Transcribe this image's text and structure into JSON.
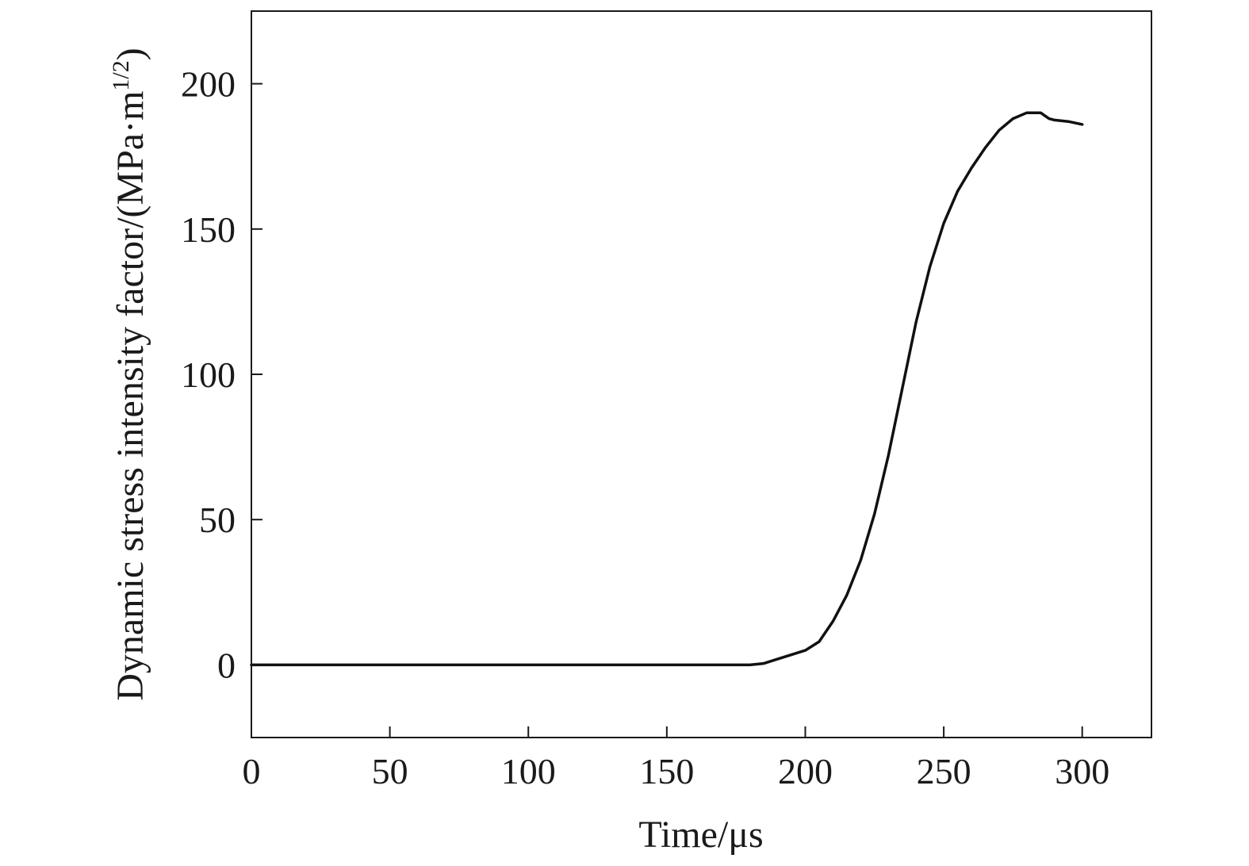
{
  "chart_data": {
    "type": "line",
    "title": "",
    "xlabel": "Time/μs",
    "ylabel": "Dynamic stress intensity factor/(MPa·m",
    "ylabel_superscript": "1/2",
    "ylabel_close": ")",
    "xlim": [
      0,
      325
    ],
    "ylim": [
      -25,
      225
    ],
    "xticks": [
      0,
      50,
      100,
      150,
      200,
      250,
      300
    ],
    "yticks": [
      0,
      50,
      100,
      150,
      200
    ],
    "grid": false,
    "line_color": "#111111",
    "series": [
      {
        "x": [
          0,
          20,
          40,
          60,
          80,
          100,
          120,
          140,
          160,
          175,
          180,
          185,
          190,
          195,
          200,
          205,
          210,
          215,
          220,
          225,
          230,
          235,
          240,
          245,
          250,
          255,
          260,
          265,
          270,
          275,
          280,
          283,
          285,
          288,
          290,
          295,
          300
        ],
        "y": [
          0,
          0,
          0,
          0,
          0,
          0,
          0,
          0,
          0,
          0,
          0,
          0.5,
          2,
          3.5,
          5,
          8,
          15,
          24,
          36,
          52,
          72,
          95,
          118,
          137,
          152,
          163,
          171,
          178,
          184,
          188,
          190,
          190,
          190,
          188,
          187.5,
          187,
          186
        ]
      }
    ]
  }
}
